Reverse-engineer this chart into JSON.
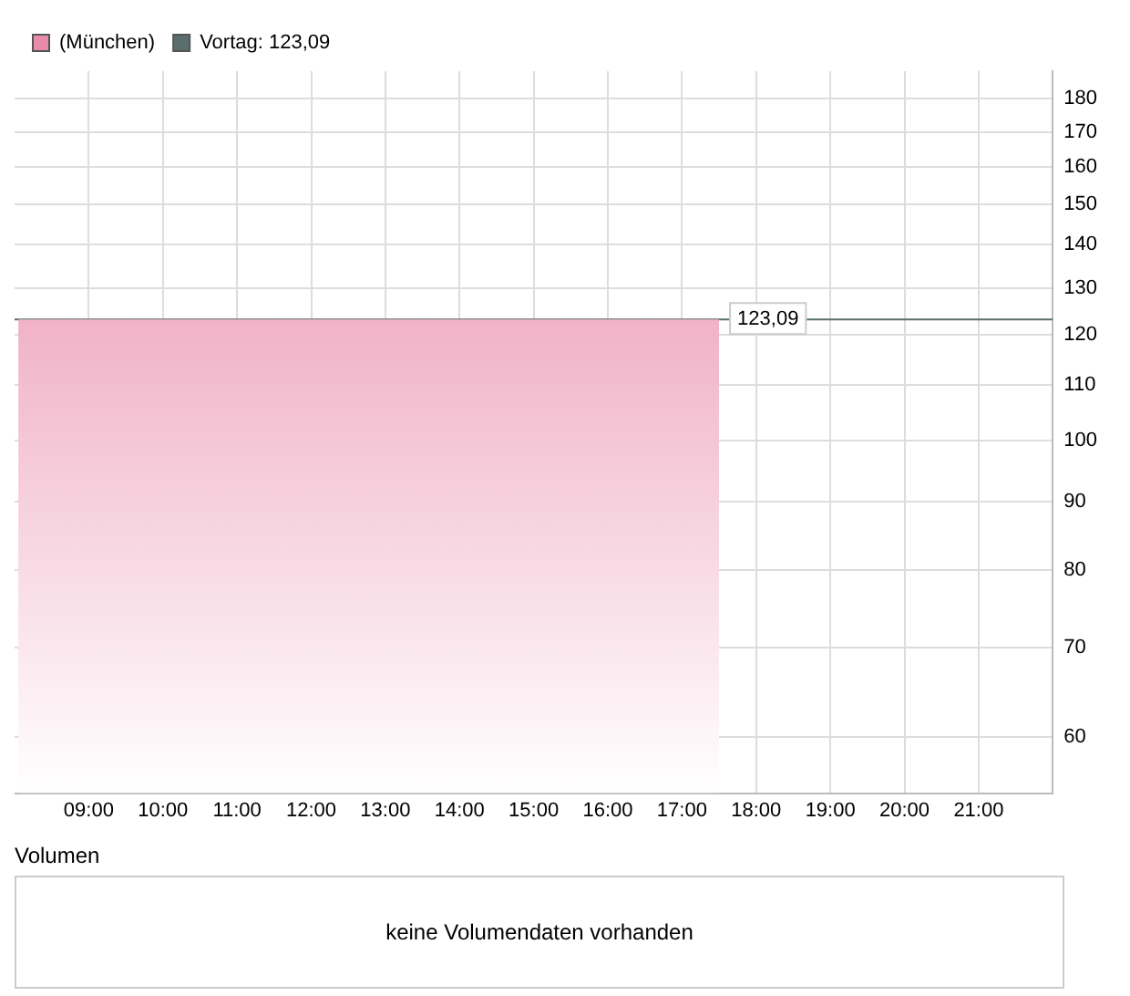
{
  "chart_data": [
    {
      "type": "area",
      "x": [
        8.05,
        17.5
      ],
      "series": [
        {
          "name": "(München)",
          "color": "#e98aab",
          "values": [
            123.09,
            123.09
          ]
        }
      ],
      "xlim": [
        8,
        22
      ],
      "xticks": [
        {
          "value": 9,
          "label": "09:00"
        },
        {
          "value": 10,
          "label": "10:00"
        },
        {
          "value": 11,
          "label": "11:00"
        },
        {
          "value": 12,
          "label": "12:00"
        },
        {
          "value": 13,
          "label": "13:00"
        },
        {
          "value": 14,
          "label": "14:00"
        },
        {
          "value": 15,
          "label": "15:00"
        },
        {
          "value": 16,
          "label": "16:00"
        },
        {
          "value": 17,
          "label": "17:00"
        },
        {
          "value": 18,
          "label": "18:00"
        },
        {
          "value": 19,
          "label": "19:00"
        },
        {
          "value": 20,
          "label": "20:00"
        },
        {
          "value": 21,
          "label": "21:00"
        }
      ],
      "ylim": [
        54.5,
        188.7
      ],
      "yticks": [
        60,
        70,
        80,
        90,
        100,
        110,
        120,
        130,
        140,
        150,
        160,
        170,
        180
      ],
      "log": "y",
      "grid": true,
      "legend": "top left",
      "ref_lines": [
        {
          "axis": "y",
          "value": 123.09,
          "label": "Vortag: 123,09",
          "color": "#5a6e6e"
        }
      ],
      "annotations": [
        {
          "text": "123,09",
          "x": 17.5,
          "y": 123.09
        }
      ]
    },
    {
      "type": "other",
      "title": "Volumen",
      "annotations": [
        "keine Volumendaten vorhanden"
      ]
    }
  ]
}
